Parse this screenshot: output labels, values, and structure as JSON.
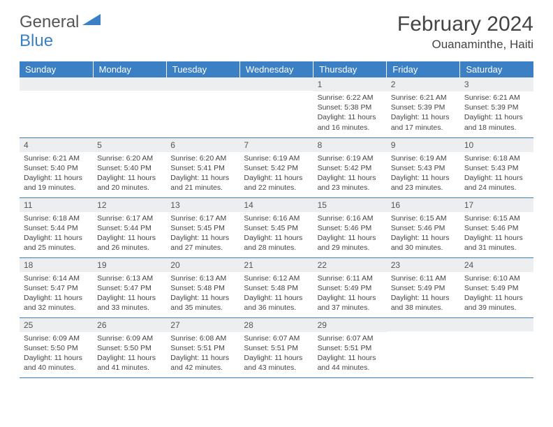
{
  "brand": {
    "part1": "General",
    "part2": "Blue"
  },
  "title": "February 2024",
  "location": "Ouanaminthe, Haiti",
  "colors": {
    "header_bg": "#3b7fc4",
    "row_divider": "#3b7fc4",
    "daynum_bg": "#eceeef",
    "text": "#444444"
  },
  "weekdays": [
    "Sunday",
    "Monday",
    "Tuesday",
    "Wednesday",
    "Thursday",
    "Friday",
    "Saturday"
  ],
  "labels": {
    "sunrise": "Sunrise:",
    "sunset": "Sunset:",
    "daylight": "Daylight:"
  },
  "weeks": [
    [
      null,
      null,
      null,
      null,
      {
        "n": "1",
        "sr": "6:22 AM",
        "ss": "5:38 PM",
        "dl": "11 hours and 16 minutes."
      },
      {
        "n": "2",
        "sr": "6:21 AM",
        "ss": "5:39 PM",
        "dl": "11 hours and 17 minutes."
      },
      {
        "n": "3",
        "sr": "6:21 AM",
        "ss": "5:39 PM",
        "dl": "11 hours and 18 minutes."
      }
    ],
    [
      {
        "n": "4",
        "sr": "6:21 AM",
        "ss": "5:40 PM",
        "dl": "11 hours and 19 minutes."
      },
      {
        "n": "5",
        "sr": "6:20 AM",
        "ss": "5:40 PM",
        "dl": "11 hours and 20 minutes."
      },
      {
        "n": "6",
        "sr": "6:20 AM",
        "ss": "5:41 PM",
        "dl": "11 hours and 21 minutes."
      },
      {
        "n": "7",
        "sr": "6:19 AM",
        "ss": "5:42 PM",
        "dl": "11 hours and 22 minutes."
      },
      {
        "n": "8",
        "sr": "6:19 AM",
        "ss": "5:42 PM",
        "dl": "11 hours and 23 minutes."
      },
      {
        "n": "9",
        "sr": "6:19 AM",
        "ss": "5:43 PM",
        "dl": "11 hours and 23 minutes."
      },
      {
        "n": "10",
        "sr": "6:18 AM",
        "ss": "5:43 PM",
        "dl": "11 hours and 24 minutes."
      }
    ],
    [
      {
        "n": "11",
        "sr": "6:18 AM",
        "ss": "5:44 PM",
        "dl": "11 hours and 25 minutes."
      },
      {
        "n": "12",
        "sr": "6:17 AM",
        "ss": "5:44 PM",
        "dl": "11 hours and 26 minutes."
      },
      {
        "n": "13",
        "sr": "6:17 AM",
        "ss": "5:45 PM",
        "dl": "11 hours and 27 minutes."
      },
      {
        "n": "14",
        "sr": "6:16 AM",
        "ss": "5:45 PM",
        "dl": "11 hours and 28 minutes."
      },
      {
        "n": "15",
        "sr": "6:16 AM",
        "ss": "5:46 PM",
        "dl": "11 hours and 29 minutes."
      },
      {
        "n": "16",
        "sr": "6:15 AM",
        "ss": "5:46 PM",
        "dl": "11 hours and 30 minutes."
      },
      {
        "n": "17",
        "sr": "6:15 AM",
        "ss": "5:46 PM",
        "dl": "11 hours and 31 minutes."
      }
    ],
    [
      {
        "n": "18",
        "sr": "6:14 AM",
        "ss": "5:47 PM",
        "dl": "11 hours and 32 minutes."
      },
      {
        "n": "19",
        "sr": "6:13 AM",
        "ss": "5:47 PM",
        "dl": "11 hours and 33 minutes."
      },
      {
        "n": "20",
        "sr": "6:13 AM",
        "ss": "5:48 PM",
        "dl": "11 hours and 35 minutes."
      },
      {
        "n": "21",
        "sr": "6:12 AM",
        "ss": "5:48 PM",
        "dl": "11 hours and 36 minutes."
      },
      {
        "n": "22",
        "sr": "6:11 AM",
        "ss": "5:49 PM",
        "dl": "11 hours and 37 minutes."
      },
      {
        "n": "23",
        "sr": "6:11 AM",
        "ss": "5:49 PM",
        "dl": "11 hours and 38 minutes."
      },
      {
        "n": "24",
        "sr": "6:10 AM",
        "ss": "5:49 PM",
        "dl": "11 hours and 39 minutes."
      }
    ],
    [
      {
        "n": "25",
        "sr": "6:09 AM",
        "ss": "5:50 PM",
        "dl": "11 hours and 40 minutes."
      },
      {
        "n": "26",
        "sr": "6:09 AM",
        "ss": "5:50 PM",
        "dl": "11 hours and 41 minutes."
      },
      {
        "n": "27",
        "sr": "6:08 AM",
        "ss": "5:51 PM",
        "dl": "11 hours and 42 minutes."
      },
      {
        "n": "28",
        "sr": "6:07 AM",
        "ss": "5:51 PM",
        "dl": "11 hours and 43 minutes."
      },
      {
        "n": "29",
        "sr": "6:07 AM",
        "ss": "5:51 PM",
        "dl": "11 hours and 44 minutes."
      },
      null,
      null
    ]
  ]
}
